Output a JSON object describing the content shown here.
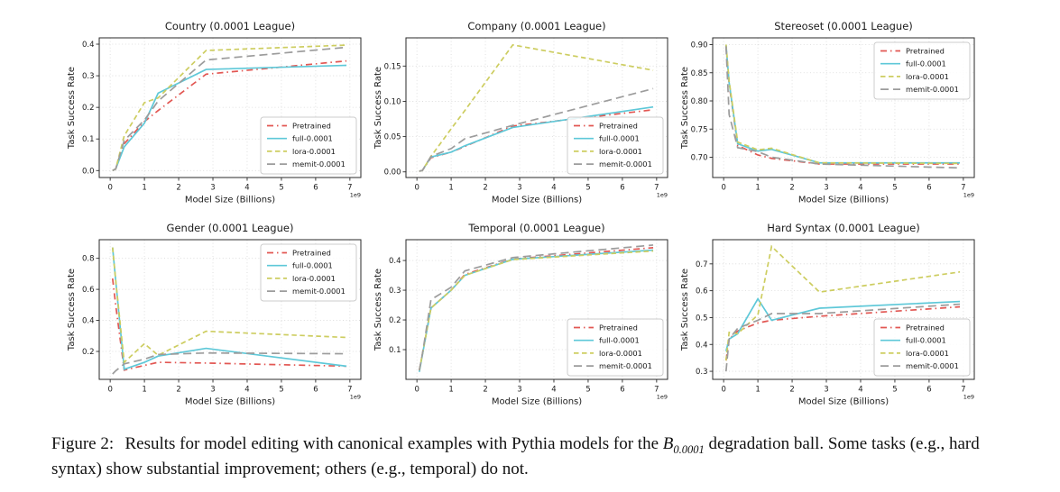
{
  "series_styles": [
    {
      "name": "Pretrained",
      "color": "#e25753",
      "dash": "dashdot"
    },
    {
      "name": "full-0.0001",
      "color": "#5ec8d8",
      "dash": "solid"
    },
    {
      "name": "lora-0.0001",
      "color": "#cdcd60",
      "dash": "dashed"
    },
    {
      "name": "memit-0.0001",
      "color": "#9c9c9c",
      "dash": "longdash"
    }
  ],
  "chart_data": [
    {
      "type": "line",
      "title": "Country (0.0001 League)",
      "xlabel": "Model Size (Billions)",
      "ylabel": "Task Success Rate",
      "x_offset": "1e9",
      "x": [
        0.07,
        0.16,
        0.41,
        1.0,
        1.4,
        2.8,
        6.9
      ],
      "xlim": [
        -0.32,
        7.32
      ],
      "xticks": {
        "values": [
          0,
          1,
          2,
          3,
          4,
          5,
          6,
          7
        ],
        "labels": [
          "0",
          "1",
          "2",
          "3",
          "4",
          "5",
          "6",
          "7"
        ]
      },
      "ylim": [
        -0.022,
        0.42
      ],
      "yticks": {
        "values": [
          0.0,
          0.1,
          0.2,
          0.3,
          0.4
        ],
        "labels": [
          "0.0",
          "0.1",
          "0.2",
          "0.3",
          "0.4"
        ]
      },
      "legend_position": "lower-right",
      "series": [
        {
          "name": "Pretrained",
          "values": [
            0.0,
            0.005,
            0.085,
            0.155,
            0.19,
            0.305,
            0.347
          ]
        },
        {
          "name": "full-0.0001",
          "values": [
            0.0,
            0.005,
            0.075,
            0.15,
            0.245,
            0.32,
            0.333
          ]
        },
        {
          "name": "lora-0.0001",
          "values": [
            0.0,
            0.005,
            0.11,
            0.215,
            0.23,
            0.38,
            0.397
          ]
        },
        {
          "name": "memit-0.0001",
          "values": [
            0.0,
            0.005,
            0.095,
            0.16,
            0.22,
            0.35,
            0.39
          ]
        }
      ]
    },
    {
      "type": "line",
      "title": "Company (0.0001 League)",
      "xlabel": "Model Size (Billions)",
      "ylabel": "Task Success Rate",
      "x_offset": "1e9",
      "x": [
        0.07,
        0.16,
        0.41,
        1.0,
        1.4,
        2.8,
        6.9
      ],
      "xlim": [
        -0.32,
        7.32
      ],
      "xticks": {
        "values": [
          0,
          1,
          2,
          3,
          4,
          5,
          6,
          7
        ],
        "labels": [
          "0",
          "1",
          "2",
          "3",
          "4",
          "5",
          "6",
          "7"
        ]
      },
      "ylim": [
        -0.008,
        0.19
      ],
      "yticks": {
        "values": [
          0.0,
          0.05,
          0.1,
          0.15
        ],
        "labels": [
          "0.00",
          "0.05",
          "0.10",
          "0.15"
        ]
      },
      "legend_position": "lower-right",
      "series": [
        {
          "name": "Pretrained",
          "values": [
            0.001,
            0.002,
            0.02,
            0.028,
            0.036,
            0.065,
            0.088
          ]
        },
        {
          "name": "full-0.0001",
          "values": [
            0.001,
            0.002,
            0.021,
            0.028,
            0.037,
            0.063,
            0.092
          ]
        },
        {
          "name": "lora-0.0001",
          "values": [
            0.001,
            0.002,
            0.022,
            0.061,
            0.087,
            0.18,
            0.144
          ]
        },
        {
          "name": "memit-0.0001",
          "values": [
            0.001,
            0.002,
            0.022,
            0.033,
            0.047,
            0.066,
            0.118
          ]
        }
      ]
    },
    {
      "type": "line",
      "title": "Stereoset (0.0001 League)",
      "xlabel": "Model Size (Billions)",
      "ylabel": "Task Success Rate",
      "x_offset": "1e9",
      "x": [
        0.07,
        0.16,
        0.41,
        1.0,
        1.4,
        2.8,
        6.9
      ],
      "xlim": [
        -0.32,
        7.32
      ],
      "xticks": {
        "values": [
          0,
          1,
          2,
          3,
          4,
          5,
          6,
          7
        ],
        "labels": [
          "0",
          "1",
          "2",
          "3",
          "4",
          "5",
          "6",
          "7"
        ]
      },
      "ylim": [
        0.664,
        0.912
      ],
      "yticks": {
        "values": [
          0.7,
          0.75,
          0.8,
          0.85,
          0.9
        ],
        "labels": [
          "0.70",
          "0.75",
          "0.80",
          "0.85",
          "0.90"
        ]
      },
      "legend_position": "upper-right",
      "series": [
        {
          "name": "Pretrained",
          "values": [
            0.897,
            0.83,
            0.721,
            0.704,
            0.698,
            0.688,
            0.688
          ]
        },
        {
          "name": "full-0.0001",
          "values": [
            0.899,
            0.833,
            0.724,
            0.711,
            0.714,
            0.69,
            0.69
          ]
        },
        {
          "name": "lora-0.0001",
          "values": [
            0.9,
            0.836,
            0.727,
            0.713,
            0.716,
            0.69,
            0.689
          ]
        },
        {
          "name": "memit-0.0001",
          "values": [
            0.897,
            0.776,
            0.717,
            0.71,
            0.7,
            0.688,
            0.681
          ]
        }
      ]
    },
    {
      "type": "line",
      "title": "Gender (0.0001 League)",
      "xlabel": "Model Size (Billions)",
      "ylabel": "Task Success Rate",
      "x_offset": "1e9",
      "x": [
        0.07,
        0.16,
        0.41,
        1.0,
        1.4,
        2.8,
        6.9
      ],
      "xlim": [
        -0.32,
        7.32
      ],
      "xticks": {
        "values": [
          0,
          1,
          2,
          3,
          4,
          5,
          6,
          7
        ],
        "labels": [
          "0",
          "1",
          "2",
          "3",
          "4",
          "5",
          "6",
          "7"
        ]
      },
      "ylim": [
        0.02,
        0.92
      ],
      "yticks": {
        "values": [
          0.2,
          0.4,
          0.6,
          0.8
        ],
        "labels": [
          "0.2",
          "0.4",
          "0.6",
          "0.8"
        ]
      },
      "legend_position": "upper-right",
      "series": [
        {
          "name": "Pretrained",
          "values": [
            0.67,
            0.5,
            0.08,
            0.11,
            0.13,
            0.125,
            0.105
          ]
        },
        {
          "name": "full-0.0001",
          "values": [
            0.87,
            0.66,
            0.085,
            0.13,
            0.17,
            0.22,
            0.105
          ]
        },
        {
          "name": "lora-0.0001",
          "values": [
            0.87,
            0.66,
            0.13,
            0.25,
            0.175,
            0.33,
            0.29
          ]
        },
        {
          "name": "memit-0.0001",
          "values": [
            0.055,
            0.075,
            0.12,
            0.15,
            0.18,
            0.19,
            0.185
          ]
        }
      ]
    },
    {
      "type": "line",
      "title": "Temporal (0.0001 League)",
      "xlabel": "Model Size (Billions)",
      "ylabel": "Task Success Rate",
      "x_offset": "1e9",
      "x": [
        0.07,
        0.16,
        0.41,
        1.0,
        1.4,
        2.8,
        6.9
      ],
      "xlim": [
        -0.32,
        7.32
      ],
      "xticks": {
        "values": [
          0,
          1,
          2,
          3,
          4,
          5,
          6,
          7
        ],
        "labels": [
          "0",
          "1",
          "2",
          "3",
          "4",
          "5",
          "6",
          "7"
        ]
      },
      "ylim": [
        0.0,
        0.47
      ],
      "yticks": {
        "values": [
          0.1,
          0.2,
          0.3,
          0.4
        ],
        "labels": [
          "0.1",
          "0.2",
          "0.3",
          "0.4"
        ]
      },
      "legend_position": "lower-right",
      "series": [
        {
          "name": "Pretrained",
          "values": [
            0.03,
            0.085,
            0.24,
            0.3,
            0.353,
            0.405,
            0.443
          ]
        },
        {
          "name": "full-0.0001",
          "values": [
            0.025,
            0.082,
            0.24,
            0.3,
            0.35,
            0.404,
            0.435
          ]
        },
        {
          "name": "lora-0.0001",
          "values": [
            0.03,
            0.085,
            0.24,
            0.3,
            0.35,
            0.403,
            0.432
          ]
        },
        {
          "name": "memit-0.0001",
          "values": [
            0.03,
            0.085,
            0.268,
            0.31,
            0.365,
            0.41,
            0.452
          ]
        }
      ]
    },
    {
      "type": "line",
      "title": "Hard Syntax (0.0001 League)",
      "xlabel": "Model Size (Billions)",
      "ylabel": "Task Success Rate",
      "x_offset": "1e9",
      "x": [
        0.07,
        0.16,
        0.41,
        1.0,
        1.4,
        2.8,
        6.9
      ],
      "xlim": [
        -0.32,
        7.32
      ],
      "xticks": {
        "values": [
          0,
          1,
          2,
          3,
          4,
          5,
          6,
          7
        ],
        "labels": [
          "0",
          "1",
          "2",
          "3",
          "4",
          "5",
          "6",
          "7"
        ]
      },
      "ylim": [
        0.27,
        0.79
      ],
      "yticks": {
        "values": [
          0.3,
          0.4,
          0.5,
          0.6,
          0.7
        ],
        "labels": [
          "0.3",
          "0.4",
          "0.5",
          "0.6",
          "0.7"
        ]
      },
      "legend_position": "lower-right",
      "series": [
        {
          "name": "Pretrained",
          "values": [
            0.34,
            0.42,
            0.45,
            0.48,
            0.49,
            0.505,
            0.54
          ]
        },
        {
          "name": "full-0.0001",
          "values": [
            0.375,
            0.42,
            0.44,
            0.57,
            0.49,
            0.535,
            0.56
          ]
        },
        {
          "name": "lora-0.0001",
          "values": [
            0.34,
            0.445,
            0.44,
            0.51,
            0.765,
            0.595,
            0.67
          ]
        },
        {
          "name": "memit-0.0001",
          "values": [
            0.3,
            0.42,
            0.46,
            0.49,
            0.515,
            0.515,
            0.55
          ]
        }
      ]
    }
  ],
  "caption": {
    "label": "Figure 2:",
    "before_math": "Results for model editing with canonical examples with Pythia models for the",
    "math_base": "B",
    "math_sub": "0.0001",
    "after_math": "degradation ball. Some tasks (e.g., hard syntax) show substantial improvement; others (e.g., temporal) do not."
  }
}
